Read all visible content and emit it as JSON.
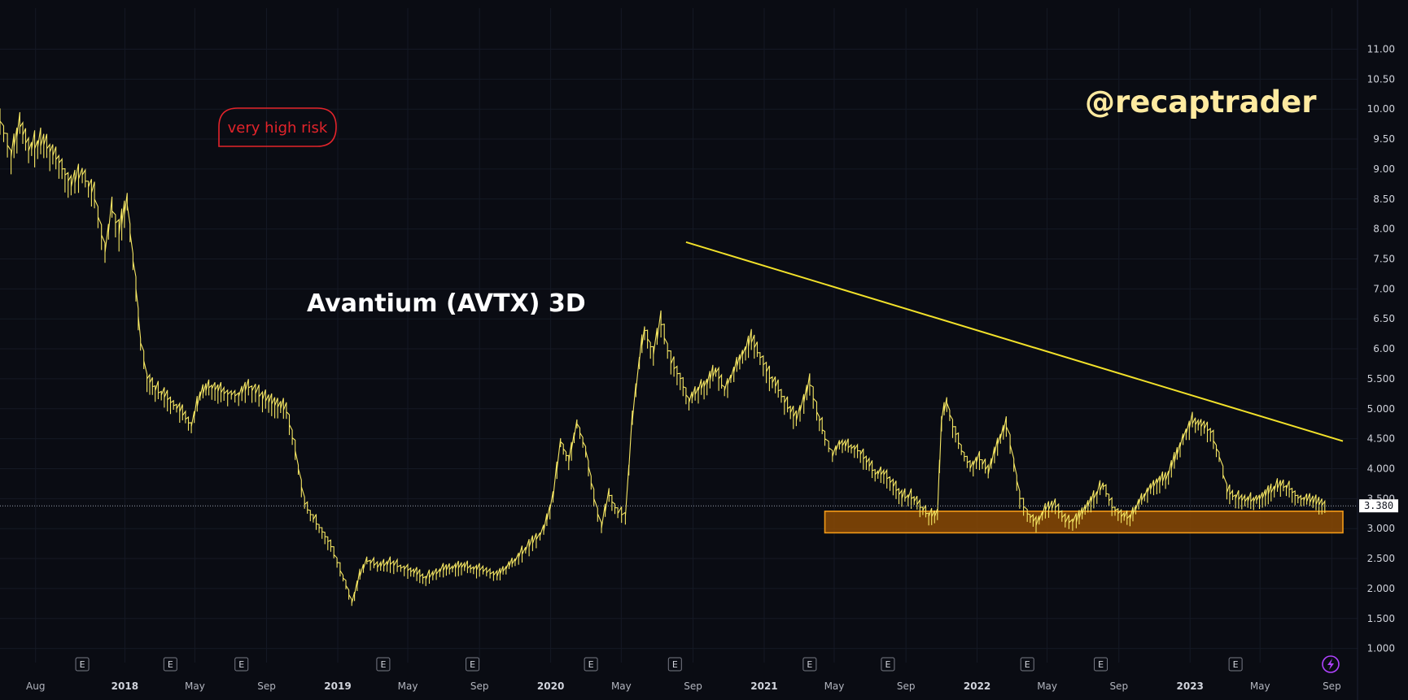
{
  "colors": {
    "background": "#0a0c13",
    "price": "#f5e663",
    "trendline": "#f2e12a",
    "support_fill": "#8a4a05",
    "support_stroke": "#f29a18",
    "risk": "#e3242b",
    "watermark": "#ffeaa0",
    "grid": "#151925"
  },
  "annotations": {
    "title": "Avantium (AVTX) 3D",
    "watermark": "@recaptrader",
    "risk_label": "very high risk",
    "current_price": "3.380"
  },
  "earnings_marker": "E",
  "chart_data": {
    "type": "line",
    "title": "Avantium (AVTX) 3D",
    "xlabel": "",
    "ylabel": "",
    "y_ticks": [
      "1.000",
      "1.500",
      "2.000",
      "2.500",
      "3.000",
      "3.500",
      "4.000",
      "4.500",
      "5.000",
      "5.500",
      "6.00",
      "6.50",
      "7.00",
      "7.50",
      "8.00",
      "8.50",
      "9.00",
      "9.50",
      "10.00",
      "10.50",
      "11.00"
    ],
    "ylim": [
      0.9,
      11.4
    ],
    "x_range": [
      "2017-06-01",
      "2023-09-20"
    ],
    "x_ticks": [
      {
        "label": "Aug",
        "date": "2017-08-01",
        "year": false
      },
      {
        "label": "2018",
        "date": "2018-01-01",
        "year": true
      },
      {
        "label": "May",
        "date": "2018-05-01",
        "year": false
      },
      {
        "label": "Sep",
        "date": "2018-09-01",
        "year": false
      },
      {
        "label": "2019",
        "date": "2019-01-01",
        "year": true
      },
      {
        "label": "May",
        "date": "2019-05-01",
        "year": false
      },
      {
        "label": "Sep",
        "date": "2019-09-01",
        "year": false
      },
      {
        "label": "2020",
        "date": "2020-01-01",
        "year": true
      },
      {
        "label": "May",
        "date": "2020-05-01",
        "year": false
      },
      {
        "label": "Sep",
        "date": "2020-09-01",
        "year": false
      },
      {
        "label": "2021",
        "date": "2021-01-01",
        "year": true
      },
      {
        "label": "May",
        "date": "2021-05-01",
        "year": false
      },
      {
        "label": "Sep",
        "date": "2021-09-01",
        "year": false
      },
      {
        "label": "2022",
        "date": "2022-01-01",
        "year": true
      },
      {
        "label": "May",
        "date": "2022-05-01",
        "year": false
      },
      {
        "label": "Sep",
        "date": "2022-09-01",
        "year": false
      },
      {
        "label": "2023",
        "date": "2023-01-01",
        "year": true
      },
      {
        "label": "May",
        "date": "2023-05-01",
        "year": false
      },
      {
        "label": "Sep",
        "date": "2023-09-01",
        "year": false
      }
    ],
    "earnings_dates": [
      "2017-10-20",
      "2018-03-20",
      "2018-07-20",
      "2019-03-20",
      "2019-08-20",
      "2020-03-10",
      "2020-08-01",
      "2021-03-20",
      "2021-08-01",
      "2022-03-28",
      "2022-08-01",
      "2023-03-20"
    ],
    "series": [
      {
        "values": [
          [
            "2017-06-01",
            9.8
          ],
          [
            "2017-06-20",
            9.2
          ],
          [
            "2017-07-05",
            9.7
          ],
          [
            "2017-07-20",
            9.3
          ],
          [
            "2017-08-15",
            9.4
          ],
          [
            "2017-09-10",
            9.1
          ],
          [
            "2017-10-01",
            8.7
          ],
          [
            "2017-10-20",
            8.9
          ],
          [
            "2017-11-10",
            8.5
          ],
          [
            "2017-11-28",
            7.6
          ],
          [
            "2017-12-10",
            8.3
          ],
          [
            "2017-12-22",
            7.9
          ],
          [
            "2018-01-05",
            8.4
          ],
          [
            "2018-01-20",
            7.0
          ],
          [
            "2018-01-28",
            6.1
          ],
          [
            "2018-02-08",
            5.5
          ],
          [
            "2018-02-22",
            5.3
          ],
          [
            "2018-03-15",
            5.15
          ],
          [
            "2018-04-05",
            4.95
          ],
          [
            "2018-04-25",
            4.7
          ],
          [
            "2018-05-10",
            5.2
          ],
          [
            "2018-05-25",
            5.35
          ],
          [
            "2018-06-20",
            5.25
          ],
          [
            "2018-07-15",
            5.2
          ],
          [
            "2018-08-01",
            5.35
          ],
          [
            "2018-08-25",
            5.15
          ],
          [
            "2018-09-15",
            5.05
          ],
          [
            "2018-10-05",
            4.95
          ],
          [
            "2018-10-20",
            4.3
          ],
          [
            "2018-11-05",
            3.4
          ],
          [
            "2018-11-20",
            3.15
          ],
          [
            "2018-12-05",
            2.95
          ],
          [
            "2018-12-20",
            2.7
          ],
          [
            "2019-01-05",
            2.3
          ],
          [
            "2019-01-15",
            2.05
          ],
          [
            "2019-01-25",
            1.75
          ],
          [
            "2019-02-08",
            2.2
          ],
          [
            "2019-02-20",
            2.45
          ],
          [
            "2019-03-10",
            2.35
          ],
          [
            "2019-04-01",
            2.4
          ],
          [
            "2019-05-01",
            2.3
          ],
          [
            "2019-06-01",
            2.15
          ],
          [
            "2019-07-01",
            2.3
          ],
          [
            "2019-08-01",
            2.35
          ],
          [
            "2019-09-01",
            2.3
          ],
          [
            "2019-10-01",
            2.2
          ],
          [
            "2019-11-01",
            2.45
          ],
          [
            "2019-12-01",
            2.75
          ],
          [
            "2019-12-20",
            2.95
          ],
          [
            "2020-01-05",
            3.5
          ],
          [
            "2020-01-18",
            4.45
          ],
          [
            "2020-02-01",
            4.1
          ],
          [
            "2020-02-15",
            4.75
          ],
          [
            "2020-03-01",
            4.3
          ],
          [
            "2020-03-15",
            3.5
          ],
          [
            "2020-03-28",
            3.0
          ],
          [
            "2020-04-10",
            3.55
          ],
          [
            "2020-04-25",
            3.25
          ],
          [
            "2020-05-08",
            3.2
          ],
          [
            "2020-05-20",
            4.8
          ],
          [
            "2020-06-01",
            5.8
          ],
          [
            "2020-06-10",
            6.3
          ],
          [
            "2020-06-25",
            5.9
          ],
          [
            "2020-07-08",
            6.4
          ],
          [
            "2020-07-25",
            5.75
          ],
          [
            "2020-08-10",
            5.5
          ],
          [
            "2020-08-25",
            5.1
          ],
          [
            "2020-09-10",
            5.3
          ],
          [
            "2020-09-25",
            5.4
          ],
          [
            "2020-10-10",
            5.6
          ],
          [
            "2020-10-25",
            5.3
          ],
          [
            "2020-11-10",
            5.6
          ],
          [
            "2020-11-25",
            5.9
          ],
          [
            "2020-12-10",
            6.1
          ],
          [
            "2020-12-25",
            5.85
          ],
          [
            "2021-01-10",
            5.5
          ],
          [
            "2021-01-25",
            5.3
          ],
          [
            "2021-02-10",
            5.0
          ],
          [
            "2021-02-25",
            4.8
          ],
          [
            "2021-03-10",
            5.1
          ],
          [
            "2021-03-20",
            5.4
          ],
          [
            "2021-04-01",
            4.95
          ],
          [
            "2021-04-15",
            4.5
          ],
          [
            "2021-04-28",
            4.2
          ],
          [
            "2021-05-10",
            4.4
          ],
          [
            "2021-05-25",
            4.35
          ],
          [
            "2021-06-10",
            4.3
          ],
          [
            "2021-06-25",
            4.1
          ],
          [
            "2021-07-10",
            3.9
          ],
          [
            "2021-07-25",
            3.9
          ],
          [
            "2021-08-10",
            3.7
          ],
          [
            "2021-08-25",
            3.5
          ],
          [
            "2021-09-10",
            3.5
          ],
          [
            "2021-09-25",
            3.35
          ],
          [
            "2021-10-10",
            3.2
          ],
          [
            "2021-10-25",
            3.2
          ],
          [
            "2021-11-01",
            4.8
          ],
          [
            "2021-11-10",
            5.1
          ],
          [
            "2021-11-20",
            4.7
          ],
          [
            "2021-12-05",
            4.3
          ],
          [
            "2021-12-20",
            4.0
          ],
          [
            "2022-01-05",
            4.15
          ],
          [
            "2022-01-20",
            3.9
          ],
          [
            "2022-02-05",
            4.4
          ],
          [
            "2022-02-20",
            4.7
          ],
          [
            "2022-03-05",
            4.1
          ],
          [
            "2022-03-15",
            3.5
          ],
          [
            "2022-03-28",
            3.25
          ],
          [
            "2022-04-12",
            3.05
          ],
          [
            "2022-04-28",
            3.3
          ],
          [
            "2022-05-15",
            3.35
          ],
          [
            "2022-06-01",
            3.1
          ],
          [
            "2022-06-20",
            3.1
          ],
          [
            "2022-07-05",
            3.3
          ],
          [
            "2022-07-20",
            3.5
          ],
          [
            "2022-08-05",
            3.7
          ],
          [
            "2022-08-20",
            3.35
          ],
          [
            "2022-09-05",
            3.2
          ],
          [
            "2022-09-20",
            3.15
          ],
          [
            "2022-10-05",
            3.4
          ],
          [
            "2022-10-20",
            3.6
          ],
          [
            "2022-11-05",
            3.75
          ],
          [
            "2022-11-20",
            3.8
          ],
          [
            "2022-12-05",
            4.1
          ],
          [
            "2022-12-20",
            4.5
          ],
          [
            "2023-01-05",
            4.75
          ],
          [
            "2023-01-20",
            4.7
          ],
          [
            "2023-02-05",
            4.6
          ],
          [
            "2023-02-20",
            4.2
          ],
          [
            "2023-03-05",
            3.6
          ],
          [
            "2023-03-20",
            3.5
          ],
          [
            "2023-04-05",
            3.45
          ],
          [
            "2023-04-20",
            3.45
          ],
          [
            "2023-05-05",
            3.5
          ],
          [
            "2023-05-20",
            3.6
          ],
          [
            "2023-06-05",
            3.7
          ],
          [
            "2023-06-20",
            3.65
          ],
          [
            "2023-07-05",
            3.5
          ],
          [
            "2023-07-20",
            3.45
          ],
          [
            "2023-08-05",
            3.4
          ],
          [
            "2023-08-20",
            3.38
          ]
        ]
      }
    ],
    "trendline": {
      "from": [
        "2020-08-20",
        7.78
      ],
      "to": [
        "2023-09-20",
        4.46
      ]
    },
    "support_zone": {
      "from": "2021-04-15",
      "to": "2023-09-20",
      "low": 2.93,
      "high": 3.29
    },
    "grid": true,
    "legend": "none"
  }
}
